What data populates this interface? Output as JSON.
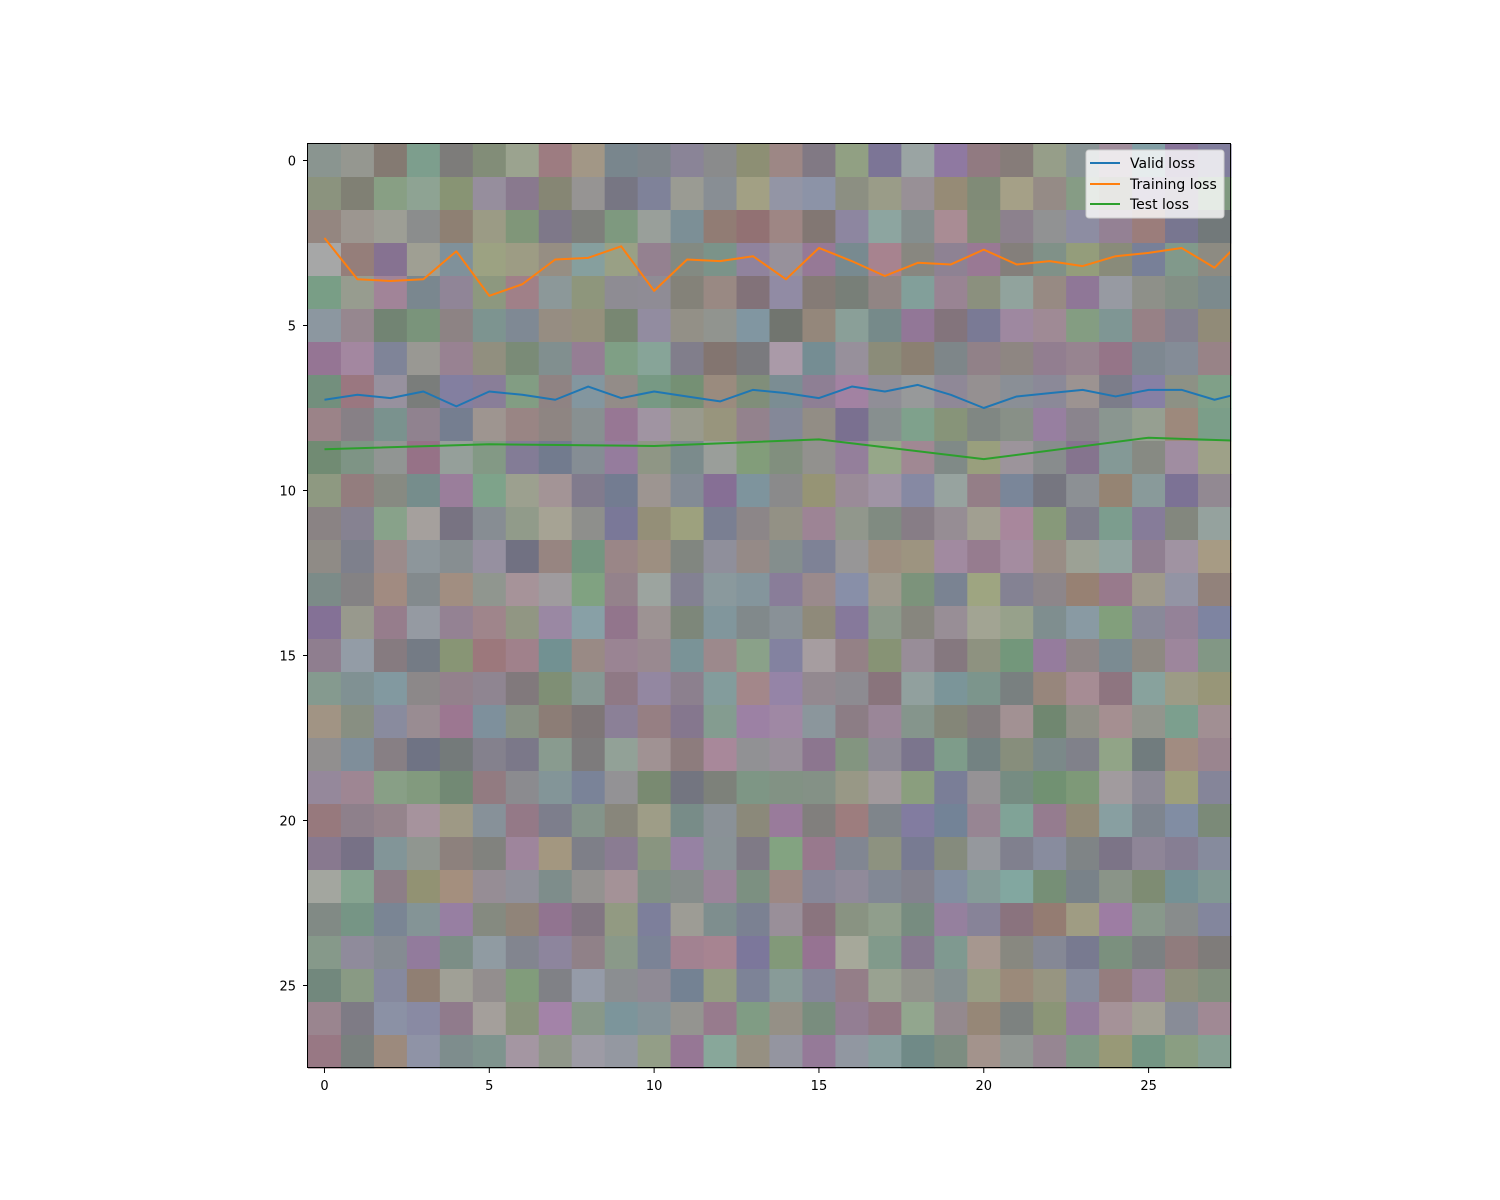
{
  "chart_data": {
    "type": "line",
    "background": "heatmap",
    "xlim": [
      -0.5,
      27.5
    ],
    "ylim": [
      27.5,
      -0.5
    ],
    "y_inverted": true,
    "x_ticks": [
      0,
      5,
      10,
      15,
      20,
      25
    ],
    "y_ticks": [
      0,
      5,
      10,
      15,
      20,
      25
    ],
    "x_tick_labels": [
      "0",
      "5",
      "10",
      "15",
      "20",
      "25"
    ],
    "y_tick_labels": [
      "0",
      "5",
      "10",
      "15",
      "20",
      "25"
    ],
    "grid": false,
    "legend_position": "top-right",
    "series": [
      {
        "name": "Valid loss",
        "color": "#1f77b4",
        "x": [
          0,
          1,
          2,
          3,
          4,
          5,
          6,
          7,
          8,
          9,
          10,
          11,
          12,
          13,
          14,
          15,
          16,
          17,
          18,
          19,
          20,
          21,
          22,
          23,
          24,
          25,
          26,
          27,
          28
        ],
        "y": [
          7.25,
          7.1,
          7.2,
          7.0,
          7.45,
          7.0,
          7.1,
          7.25,
          6.85,
          7.2,
          7.0,
          7.15,
          7.3,
          6.95,
          7.05,
          7.2,
          6.85,
          7.0,
          6.8,
          7.1,
          7.5,
          7.15,
          7.05,
          6.95,
          7.15,
          6.95,
          6.95,
          7.25,
          7.0
        ]
      },
      {
        "name": "Training loss",
        "color": "#ff7f0e",
        "x": [
          0,
          1,
          2,
          3,
          4,
          5,
          6,
          7,
          8,
          9,
          10,
          11,
          12,
          13,
          14,
          15,
          16,
          17,
          18,
          19,
          20,
          21,
          22,
          23,
          24,
          25,
          26,
          27,
          28
        ],
        "y": [
          2.35,
          3.6,
          3.65,
          3.6,
          2.75,
          4.1,
          3.75,
          3.0,
          2.95,
          2.6,
          3.95,
          3.0,
          3.05,
          2.9,
          3.6,
          2.65,
          3.05,
          3.5,
          3.1,
          3.15,
          2.7,
          3.15,
          3.05,
          3.2,
          2.9,
          2.8,
          2.65,
          3.25,
          2.25
        ]
      },
      {
        "name": "Test loss",
        "color": "#2ca02c",
        "x": [
          0,
          5,
          10,
          15,
          20,
          25,
          28
        ],
        "y": [
          8.75,
          8.6,
          8.65,
          8.45,
          9.05,
          8.4,
          8.5
        ]
      }
    ],
    "heatmap": {
      "rows": 28,
      "cols": 28,
      "seed": 1337
    }
  },
  "legend": {
    "items": [
      {
        "label": "Valid loss",
        "color": "#1f77b4"
      },
      {
        "label": "Training loss",
        "color": "#ff7f0e"
      },
      {
        "label": "Test loss",
        "color": "#2ca02c"
      }
    ]
  }
}
